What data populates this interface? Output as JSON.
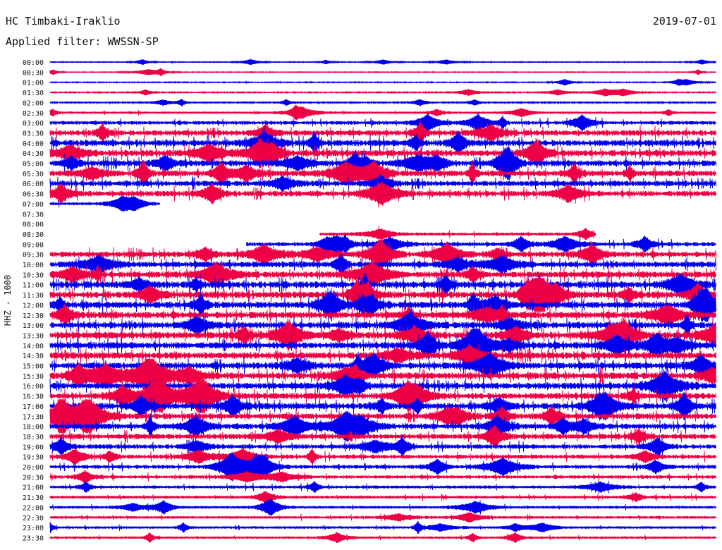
{
  "header": {
    "station": "HC Timbaki-Iraklio",
    "date": "2019-07-01",
    "filter": "Applied filter: WWSSN-SP"
  },
  "chart_data": {
    "type": "line",
    "title": "HC Timbaki-Iraklio",
    "ylabel": "HHZ - 1000",
    "x": [
      0,
      30
    ],
    "xlabel": "",
    "row_labels": [
      "00:00",
      "00:30",
      "01:00",
      "01:30",
      "02:00",
      "02:30",
      "03:00",
      "03:30",
      "04:00",
      "04:30",
      "05:00",
      "05:30",
      "06:00",
      "06:30",
      "07:00",
      "07:30",
      "08:00",
      "08:30",
      "09:00",
      "09:30",
      "10:00",
      "10:30",
      "11:00",
      "11:30",
      "12:00",
      "12:30",
      "13:00",
      "13:30",
      "14:00",
      "14:30",
      "15:00",
      "15:30",
      "16:00",
      "16:30",
      "17:00",
      "17:30",
      "18:00",
      "18:30",
      "19:00",
      "19:30",
      "20:00",
      "20:30",
      "21:00",
      "21:30",
      "22:00",
      "22:30",
      "23:00",
      "23:30"
    ],
    "colors": {
      "even": "#0000ee",
      "odd": "#ee0044"
    },
    "rows": [
      {
        "label": "00:00",
        "coverage": [
          0,
          1
        ],
        "level": 0.5
      },
      {
        "label": "00:30",
        "coverage": [
          0,
          1
        ],
        "level": 0.5
      },
      {
        "label": "01:00",
        "coverage": [
          0,
          1
        ],
        "level": 0.6
      },
      {
        "label": "01:30",
        "coverage": [
          0,
          1
        ],
        "level": 0.7
      },
      {
        "label": "02:00",
        "coverage": [
          0,
          1
        ],
        "level": 0.8
      },
      {
        "label": "02:30",
        "coverage": [
          0,
          1
        ],
        "level": 1.2
      },
      {
        "label": "03:00",
        "coverage": [
          0,
          1
        ],
        "level": 2.2
      },
      {
        "label": "03:30",
        "coverage": [
          0,
          1
        ],
        "level": 3.2
      },
      {
        "label": "04:00",
        "coverage": [
          0,
          1
        ],
        "level": 3.6
      },
      {
        "label": "04:30",
        "coverage": [
          0,
          1
        ],
        "level": 3.6
      },
      {
        "label": "05:00",
        "coverage": [
          0,
          1
        ],
        "level": 3.4
      },
      {
        "label": "05:30",
        "coverage": [
          0,
          1
        ],
        "level": 3.4
      },
      {
        "label": "06:00",
        "coverage": [
          0,
          1
        ],
        "level": 3.2
      },
      {
        "label": "06:30",
        "coverage": [
          0,
          1
        ],
        "level": 3.2
      },
      {
        "label": "07:00",
        "coverage": [
          0,
          0.165
        ],
        "level": 1.8
      },
      {
        "label": "07:30",
        "coverage": [
          0,
          0
        ],
        "level": 0
      },
      {
        "label": "08:00",
        "coverage": [
          0,
          0
        ],
        "level": 0
      },
      {
        "label": "08:30",
        "coverage": [
          0.405,
          0.82
        ],
        "level": 1.8
      },
      {
        "label": "09:00",
        "coverage": [
          0.295,
          1
        ],
        "level": 2.4
      },
      {
        "label": "09:30",
        "coverage": [
          0,
          1
        ],
        "level": 3.2
      },
      {
        "label": "10:00",
        "coverage": [
          0,
          1
        ],
        "level": 3.4
      },
      {
        "label": "10:30",
        "coverage": [
          0,
          1
        ],
        "level": 3.6
      },
      {
        "label": "11:00",
        "coverage": [
          0,
          1
        ],
        "level": 3.8
      },
      {
        "label": "11:30",
        "coverage": [
          0,
          1
        ],
        "level": 3.8
      },
      {
        "label": "12:00",
        "coverage": [
          0,
          1
        ],
        "level": 3.8
      },
      {
        "label": "12:30",
        "coverage": [
          0,
          1
        ],
        "level": 3.8
      },
      {
        "label": "13:00",
        "coverage": [
          0,
          1
        ],
        "level": 3.8
      },
      {
        "label": "13:30",
        "coverage": [
          0,
          1
        ],
        "level": 3.8
      },
      {
        "label": "14:00",
        "coverage": [
          0,
          1
        ],
        "level": 3.8
      },
      {
        "label": "14:30",
        "coverage": [
          0,
          1
        ],
        "level": 3.8
      },
      {
        "label": "15:00",
        "coverage": [
          0,
          1
        ],
        "level": 3.8
      },
      {
        "label": "15:30",
        "coverage": [
          0,
          1
        ],
        "level": 3.8
      },
      {
        "label": "16:00",
        "coverage": [
          0,
          1
        ],
        "level": 3.6
      },
      {
        "label": "16:30",
        "coverage": [
          0,
          1
        ],
        "level": 3.6
      },
      {
        "label": "17:00",
        "coverage": [
          0,
          1
        ],
        "level": 3.6
      },
      {
        "label": "17:30",
        "coverage": [
          0,
          1
        ],
        "level": 3.4
      },
      {
        "label": "18:00",
        "coverage": [
          0,
          1
        ],
        "level": 3.2
      },
      {
        "label": "18:30",
        "coverage": [
          0,
          1
        ],
        "level": 3.0
      },
      {
        "label": "19:00",
        "coverage": [
          0,
          1
        ],
        "level": 2.6
      },
      {
        "label": "19:30",
        "coverage": [
          0,
          1
        ],
        "level": 2.4
      },
      {
        "label": "20:00",
        "coverage": [
          0,
          1
        ],
        "level": 2.2
      },
      {
        "label": "20:30",
        "coverage": [
          0,
          1
        ],
        "level": 2.0
      },
      {
        "label": "21:00",
        "coverage": [
          0,
          1
        ],
        "level": 1.8
      },
      {
        "label": "21:30",
        "coverage": [
          0,
          1
        ],
        "level": 1.7
      },
      {
        "label": "22:00",
        "coverage": [
          0,
          1
        ],
        "level": 1.6
      },
      {
        "label": "22:30",
        "coverage": [
          0,
          1
        ],
        "level": 1.5
      },
      {
        "label": "23:00",
        "coverage": [
          0,
          1
        ],
        "level": 1.4
      },
      {
        "label": "23:30",
        "coverage": [
          0,
          1
        ],
        "level": 1.3
      }
    ]
  }
}
